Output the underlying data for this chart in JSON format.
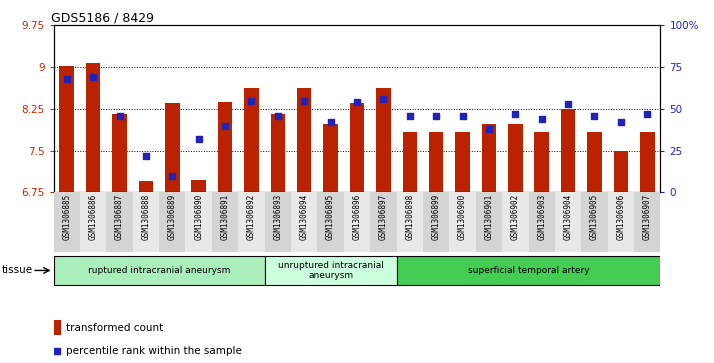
{
  "title": "GDS5186 / 8429",
  "samples": [
    "GSM1306885",
    "GSM1306886",
    "GSM1306887",
    "GSM1306888",
    "GSM1306889",
    "GSM1306890",
    "GSM1306891",
    "GSM1306892",
    "GSM1306893",
    "GSM1306894",
    "GSM1306895",
    "GSM1306896",
    "GSM1306897",
    "GSM1306898",
    "GSM1306899",
    "GSM1306900",
    "GSM1306901",
    "GSM1306902",
    "GSM1306903",
    "GSM1306904",
    "GSM1306905",
    "GSM1306906",
    "GSM1306907"
  ],
  "bar_values": [
    9.02,
    9.08,
    8.15,
    6.95,
    8.35,
    6.97,
    8.38,
    8.62,
    8.15,
    8.62,
    7.97,
    8.35,
    8.62,
    7.83,
    7.83,
    7.83,
    7.97,
    7.98,
    7.83,
    8.25,
    7.83,
    7.5,
    7.83
  ],
  "dot_values": [
    68,
    69,
    46,
    22,
    10,
    32,
    40,
    55,
    46,
    55,
    42,
    54,
    56,
    46,
    46,
    46,
    38,
    47,
    44,
    53,
    46,
    42,
    47
  ],
  "ylim_left": [
    6.75,
    9.75
  ],
  "ylim_right": [
    0,
    100
  ],
  "yticks_left": [
    6.75,
    7.5,
    8.25,
    9.0,
    9.75
  ],
  "ytick_labels_left": [
    "6.75",
    "7.5",
    "8.25",
    "9",
    "9.75"
  ],
  "yticks_right": [
    0,
    25,
    50,
    75,
    100
  ],
  "ytick_labels_right": [
    "0",
    "25",
    "50",
    "75",
    "100%"
  ],
  "bar_color": "#BB2200",
  "dot_color": "#2222BB",
  "groups": [
    {
      "label": "ruptured intracranial aneurysm",
      "start": 0,
      "end": 8,
      "color": "#AAEEBB"
    },
    {
      "label": "unruptured intracranial\naneurysm",
      "start": 8,
      "end": 13,
      "color": "#CCFFDD"
    },
    {
      "label": "superficial temporal artery",
      "start": 13,
      "end": 23,
      "color": "#44CC55"
    }
  ],
  "tissue_label": "tissue",
  "legend_bar": "transformed count",
  "legend_dot": "percentile rank within the sample",
  "xtick_bg_even": "#D4D4D4",
  "xtick_bg_odd": "#E8E8E8"
}
